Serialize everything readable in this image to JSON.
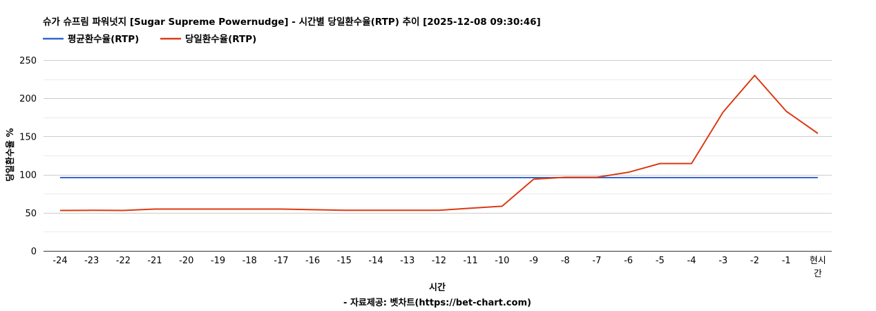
{
  "chart_data": {
    "type": "line",
    "title": "슈가 슈프림 파워넛지 [Sugar Supreme Powernudge] - 시간별 당일환수율(RTP) 추이 [2025-12-08 09:30:46]",
    "xlabel": "시간",
    "ylabel": "당일환수율 %",
    "source": "- 자료제공: 벳차트(https://bet-chart.com)",
    "categories": [
      "-24",
      "-23",
      "-22",
      "-21",
      "-20",
      "-19",
      "-18",
      "-17",
      "-16",
      "-15",
      "-14",
      "-13",
      "-12",
      "-11",
      "-10",
      "-9",
      "-8",
      "-7",
      "-6",
      "-5",
      "-4",
      "-3",
      "-2",
      "-1",
      "현시간"
    ],
    "yticks": [
      0,
      50,
      100,
      150,
      200,
      250
    ],
    "ylim": [
      0,
      250
    ],
    "grid": true,
    "legend_position": "top-left",
    "series": [
      {
        "name": "평균환수율(RTP)",
        "color": "#3366cc",
        "values": [
          96,
          96,
          96,
          96,
          96,
          96,
          96,
          96,
          96,
          96,
          96,
          96,
          96,
          96,
          96,
          96,
          96,
          96,
          96,
          96,
          96,
          96,
          96,
          96,
          96
        ]
      },
      {
        "name": "당일환수율(RTP)",
        "color": "#dc3912",
        "values": [
          53,
          53.2,
          53,
          54.8,
          54.8,
          54.8,
          54.8,
          54.8,
          54,
          53.2,
          53.2,
          53.2,
          53.2,
          56,
          58.5,
          94,
          96.5,
          96.5,
          103,
          114.5,
          114.5,
          182,
          230,
          183,
          154
        ]
      }
    ]
  }
}
